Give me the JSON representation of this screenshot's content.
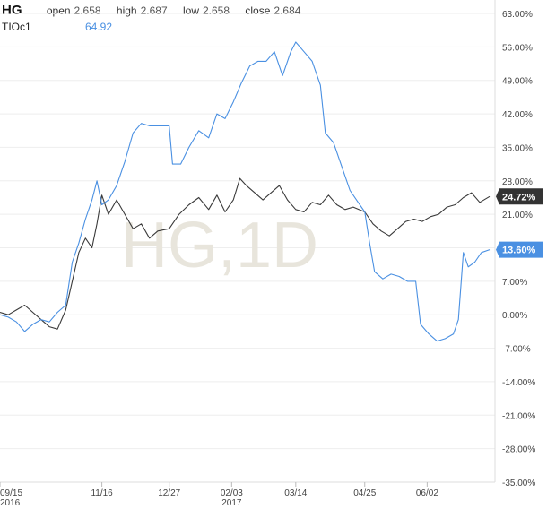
{
  "legend": {
    "symbol": "HG",
    "open_label": "open",
    "open": "2.658",
    "high_label": "high",
    "high": "2.687",
    "low_label": "low",
    "low": "2.658",
    "close_label": "close",
    "close": "2.684",
    "compare_symbol": "TIOc1",
    "compare_value": "64.92"
  },
  "watermark": "HG,1D",
  "colors": {
    "hg_line": "#3a3a3a",
    "tio_line": "#4a90e2",
    "hg_tag": "#333333",
    "tio_tag": "#4a90e2",
    "grid": "#eeeeee"
  },
  "chart_data": {
    "type": "line",
    "title": "",
    "xlabel": "",
    "ylabel": "",
    "ylim": [
      -35,
      63
    ],
    "y_ticks": [
      63,
      56,
      49,
      42,
      35,
      28,
      21,
      14,
      7,
      0,
      -7,
      -14,
      -21,
      -28,
      -35
    ],
    "y_tick_labels": [
      "63.00%",
      "56.00%",
      "49.00%",
      "42.00%",
      "35.00%",
      "28.00%",
      "21.00%",
      "14.00%",
      "7.00%",
      "0.00%",
      "-7.00%",
      "-14.00%",
      "-21.00%",
      "-28.00%",
      "-35.00%"
    ],
    "x_range": [
      "2016-09-15",
      "2017-07-10"
    ],
    "x_ticks": [
      {
        "date": "2016-09-15",
        "label": "09/15",
        "sublabel": "2016"
      },
      {
        "date": "2016-11-16",
        "label": "11/16",
        "sublabel": ""
      },
      {
        "date": "2016-12-27",
        "label": "12/27",
        "sublabel": ""
      },
      {
        "date": "2017-02-03",
        "label": "02/03",
        "sublabel": "2017"
      },
      {
        "date": "2017-03-14",
        "label": "03/14",
        "sublabel": ""
      },
      {
        "date": "2017-04-25",
        "label": "04/25",
        "sublabel": ""
      },
      {
        "date": "2017-06-02",
        "label": "06/02",
        "sublabel": ""
      }
    ],
    "series": [
      {
        "name": "HG",
        "end_label": "24.72%",
        "points": [
          [
            "2016-09-15",
            0.5
          ],
          [
            "2016-09-20",
            0.0
          ],
          [
            "2016-09-25",
            1.0
          ],
          [
            "2016-09-30",
            2.0
          ],
          [
            "2016-10-05",
            0.5
          ],
          [
            "2016-10-10",
            -1.0
          ],
          [
            "2016-10-15",
            -2.5
          ],
          [
            "2016-10-20",
            -3.0
          ],
          [
            "2016-10-25",
            1.0
          ],
          [
            "2016-10-29",
            7.0
          ],
          [
            "2016-11-02",
            13.0
          ],
          [
            "2016-11-06",
            16.0
          ],
          [
            "2016-11-10",
            14.0
          ],
          [
            "2016-11-13",
            19.0
          ],
          [
            "2016-11-16",
            25.0
          ],
          [
            "2016-11-20",
            21.0
          ],
          [
            "2016-11-25",
            24.0
          ],
          [
            "2016-11-30",
            21.0
          ],
          [
            "2016-12-05",
            18.0
          ],
          [
            "2016-12-10",
            19.0
          ],
          [
            "2016-12-15",
            16.0
          ],
          [
            "2016-12-20",
            17.5
          ],
          [
            "2016-12-27",
            18.0
          ],
          [
            "2017-01-02",
            21.0
          ],
          [
            "2017-01-08",
            23.0
          ],
          [
            "2017-01-14",
            24.5
          ],
          [
            "2017-01-20",
            22.0
          ],
          [
            "2017-01-25",
            25.0
          ],
          [
            "2017-01-30",
            21.5
          ],
          [
            "2017-02-04",
            24.0
          ],
          [
            "2017-02-08",
            28.5
          ],
          [
            "2017-02-12",
            27.0
          ],
          [
            "2017-02-17",
            25.5
          ],
          [
            "2017-02-22",
            24.0
          ],
          [
            "2017-02-27",
            25.5
          ],
          [
            "2017-03-04",
            27.0
          ],
          [
            "2017-03-09",
            24.0
          ],
          [
            "2017-03-14",
            22.0
          ],
          [
            "2017-03-19",
            21.5
          ],
          [
            "2017-03-24",
            23.5
          ],
          [
            "2017-03-29",
            23.0
          ],
          [
            "2017-04-03",
            25.0
          ],
          [
            "2017-04-08",
            23.0
          ],
          [
            "2017-04-13",
            22.0
          ],
          [
            "2017-04-18",
            22.5
          ],
          [
            "2017-04-25",
            21.5
          ],
          [
            "2017-04-30",
            19.0
          ],
          [
            "2017-05-05",
            17.5
          ],
          [
            "2017-05-10",
            16.5
          ],
          [
            "2017-05-15",
            18.0
          ],
          [
            "2017-05-20",
            19.5
          ],
          [
            "2017-05-25",
            20.0
          ],
          [
            "2017-05-30",
            19.5
          ],
          [
            "2017-06-04",
            20.5
          ],
          [
            "2017-06-09",
            21.0
          ],
          [
            "2017-06-14",
            22.5
          ],
          [
            "2017-06-19",
            23.0
          ],
          [
            "2017-06-24",
            24.5
          ],
          [
            "2017-06-29",
            25.5
          ],
          [
            "2017-07-04",
            23.5
          ],
          [
            "2017-07-10",
            24.72
          ]
        ]
      },
      {
        "name": "TIOc1",
        "end_label": "13.60%",
        "points": [
          [
            "2016-09-15",
            0.0
          ],
          [
            "2016-09-20",
            -0.5
          ],
          [
            "2016-09-25",
            -1.5
          ],
          [
            "2016-09-30",
            -3.5
          ],
          [
            "2016-10-05",
            -2.0
          ],
          [
            "2016-10-10",
            -1.0
          ],
          [
            "2016-10-15",
            -1.5
          ],
          [
            "2016-10-20",
            0.5
          ],
          [
            "2016-10-25",
            2.0
          ],
          [
            "2016-10-29",
            11.0
          ],
          [
            "2016-11-02",
            15.0
          ],
          [
            "2016-11-06",
            20.0
          ],
          [
            "2016-11-10",
            24.0
          ],
          [
            "2016-11-13",
            28.0
          ],
          [
            "2016-11-16",
            23.0
          ],
          [
            "2016-11-20",
            24.0
          ],
          [
            "2016-11-25",
            27.0
          ],
          [
            "2016-11-30",
            32.0
          ],
          [
            "2016-12-05",
            38.0
          ],
          [
            "2016-12-10",
            40.0
          ],
          [
            "2016-12-15",
            39.5
          ],
          [
            "2016-12-27",
            39.5
          ],
          [
            "2016-12-29",
            31.5
          ],
          [
            "2017-01-03",
            31.5
          ],
          [
            "2017-01-08",
            35.0
          ],
          [
            "2017-01-14",
            38.5
          ],
          [
            "2017-01-20",
            37.0
          ],
          [
            "2017-01-25",
            42.0
          ],
          [
            "2017-01-30",
            41.0
          ],
          [
            "2017-02-04",
            44.5
          ],
          [
            "2017-02-09",
            48.5
          ],
          [
            "2017-02-14",
            52.0
          ],
          [
            "2017-02-19",
            53.0
          ],
          [
            "2017-02-24",
            53.0
          ],
          [
            "2017-03-01",
            55.0
          ],
          [
            "2017-03-06",
            50.0
          ],
          [
            "2017-03-11",
            55.0
          ],
          [
            "2017-03-14",
            57.0
          ],
          [
            "2017-03-19",
            55.0
          ],
          [
            "2017-03-24",
            53.0
          ],
          [
            "2017-03-29",
            48.0
          ],
          [
            "2017-04-01",
            38.0
          ],
          [
            "2017-04-06",
            36.0
          ],
          [
            "2017-04-11",
            31.0
          ],
          [
            "2017-04-16",
            26.0
          ],
          [
            "2017-04-21",
            23.5
          ],
          [
            "2017-04-25",
            21.5
          ],
          [
            "2017-04-28",
            15.0
          ],
          [
            "2017-05-01",
            9.0
          ],
          [
            "2017-05-06",
            7.5
          ],
          [
            "2017-05-11",
            8.5
          ],
          [
            "2017-05-16",
            8.0
          ],
          [
            "2017-05-21",
            7.0
          ],
          [
            "2017-05-26",
            7.0
          ],
          [
            "2017-05-29",
            -2.0
          ],
          [
            "2017-06-03",
            -4.0
          ],
          [
            "2017-06-08",
            -5.5
          ],
          [
            "2017-06-13",
            -5.0
          ],
          [
            "2017-06-18",
            -4.0
          ],
          [
            "2017-06-21",
            -1.0
          ],
          [
            "2017-06-24",
            13.0
          ],
          [
            "2017-06-27",
            10.0
          ],
          [
            "2017-07-01",
            11.0
          ],
          [
            "2017-07-05",
            13.0
          ],
          [
            "2017-07-10",
            13.6
          ]
        ]
      }
    ]
  }
}
